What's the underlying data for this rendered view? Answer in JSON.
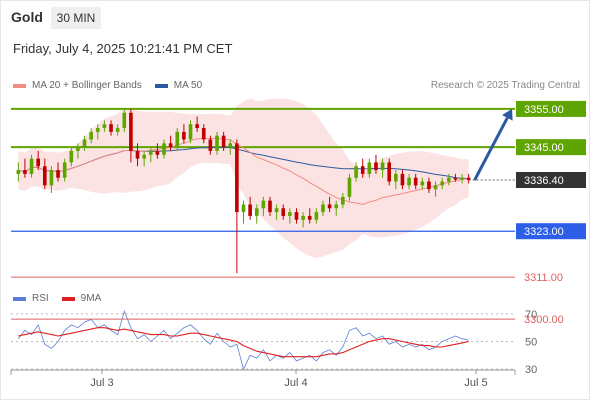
{
  "header": {
    "title": "Gold",
    "timeframe": "30 MIN",
    "datetime": "Friday, July 4, 2025 10:21:41 PM CET"
  },
  "legend": {
    "items": [
      {
        "label": "MA 20 + Bollinger Bands",
        "color": "#f28b82"
      },
      {
        "label": "MA 50",
        "color": "#2c5aa0"
      }
    ],
    "credit": "Research © 2025 Trading Central"
  },
  "rsi_legend": {
    "items": [
      {
        "label": "RSI",
        "color": "#5b7fd6"
      },
      {
        "label": "9MA",
        "color": "#e02020"
      }
    ]
  },
  "chart_data": [
    {
      "type": "candlestick",
      "ylim": [
        3305,
        3361
      ],
      "x_ticks": [
        "Jul 3",
        "Jul 4",
        "Jul 5"
      ],
      "last_price": {
        "label": "3336.40",
        "value": 3336.4
      },
      "levels": [
        {
          "label": "3355.00",
          "value": 3355,
          "color": "#5ea500",
          "kind": "resistance"
        },
        {
          "label": "3345.00",
          "value": 3345,
          "color": "#5ea500",
          "kind": "resistance"
        },
        {
          "label": "3323.00",
          "value": 3323,
          "color": "#2c5ee8",
          "kind": "pivot"
        },
        {
          "label": "3311.00",
          "value": 3311,
          "color": "#e06060",
          "kind": "support"
        },
        {
          "label": "3300.00",
          "value": 3300,
          "color": "#e06060",
          "kind": "support"
        }
      ],
      "arrow": {
        "from": 3336.4,
        "to": 3355,
        "color": "#2c5aa0"
      },
      "colors": {
        "up": "#5ea500",
        "down": "#c00000",
        "bands": "#fbd9d9",
        "ma20": "#f28b82",
        "ma50": "#2c5aa0"
      },
      "candles": [
        [
          3338,
          3341,
          3336,
          3339
        ],
        [
          3339,
          3342,
          3337,
          3338
        ],
        [
          3338,
          3343,
          3337,
          3342
        ],
        [
          3342,
          3344,
          3339,
          3340
        ],
        [
          3340,
          3342,
          3334,
          3335
        ],
        [
          3335,
          3340,
          3333,
          3339
        ],
        [
          3339,
          3341,
          3336,
          3337
        ],
        [
          3337,
          3342,
          3336,
          3341
        ],
        [
          3341,
          3345,
          3340,
          3344
        ],
        [
          3344,
          3346,
          3342,
          3345
        ],
        [
          3345,
          3348,
          3344,
          3347
        ],
        [
          3347,
          3350,
          3346,
          3349
        ],
        [
          3349,
          3351,
          3347,
          3350
        ],
        [
          3350,
          3352,
          3349,
          3351
        ],
        [
          3351,
          3352,
          3348,
          3349
        ],
        [
          3349,
          3351,
          3348,
          3350
        ],
        [
          3350,
          3355,
          3349,
          3354
        ],
        [
          3354,
          3355,
          3341,
          3344
        ],
        [
          3344,
          3346,
          3340,
          3342
        ],
        [
          3342,
          3344,
          3340,
          3343
        ],
        [
          3343,
          3345,
          3341,
          3344
        ],
        [
          3344,
          3346,
          3342,
          3343
        ],
        [
          3343,
          3347,
          3342,
          3346
        ],
        [
          3346,
          3348,
          3344,
          3345
        ],
        [
          3345,
          3350,
          3344,
          3349
        ],
        [
          3349,
          3351,
          3346,
          3347
        ],
        [
          3347,
          3352,
          3346,
          3351
        ],
        [
          3351,
          3353,
          3349,
          3350
        ],
        [
          3350,
          3351,
          3346,
          3347
        ],
        [
          3347,
          3348,
          3343,
          3344
        ],
        [
          3344,
          3349,
          3343,
          3348
        ],
        [
          3348,
          3349,
          3344,
          3345
        ],
        [
          3345,
          3347,
          3343,
          3346
        ],
        [
          3346,
          3347,
          3312,
          3328
        ],
        [
          3328,
          3331,
          3325,
          3330
        ],
        [
          3330,
          3332,
          3326,
          3327
        ],
        [
          3327,
          3330,
          3325,
          3329
        ],
        [
          3329,
          3332,
          3327,
          3331
        ],
        [
          3331,
          3332,
          3327,
          3328
        ],
        [
          3328,
          3330,
          3326,
          3329
        ],
        [
          3329,
          3330,
          3326,
          3327
        ],
        [
          3327,
          3329,
          3325,
          3328
        ],
        [
          3328,
          3329,
          3325,
          3326
        ],
        [
          3326,
          3328,
          3324,
          3327
        ],
        [
          3327,
          3329,
          3325,
          3326
        ],
        [
          3326,
          3329,
          3325,
          3328
        ],
        [
          3328,
          3331,
          3327,
          3330
        ],
        [
          3330,
          3332,
          3328,
          3329
        ],
        [
          3329,
          3331,
          3327,
          3330
        ],
        [
          3330,
          3333,
          3329,
          3332
        ],
        [
          3332,
          3338,
          3331,
          3337
        ],
        [
          3337,
          3341,
          3336,
          3340
        ],
        [
          3340,
          3342,
          3337,
          3338
        ],
        [
          3338,
          3342,
          3337,
          3341
        ],
        [
          3341,
          3343,
          3338,
          3339
        ],
        [
          3339,
          3342,
          3337,
          3341
        ],
        [
          3341,
          3342,
          3335,
          3336
        ],
        [
          3336,
          3339,
          3334,
          3338
        ],
        [
          3338,
          3339,
          3334,
          3335
        ],
        [
          3335,
          3338,
          3334,
          3337
        ],
        [
          3337,
          3338,
          3334,
          3335
        ],
        [
          3335,
          3337,
          3334,
          3336
        ],
        [
          3336,
          3337,
          3333,
          3334
        ],
        [
          3334,
          3336,
          3332,
          3335
        ],
        [
          3335,
          3337,
          3334,
          3336
        ],
        [
          3336,
          3338,
          3335,
          3337
        ],
        [
          3337,
          3338,
          3336,
          3336.5
        ],
        [
          3336.5,
          3338,
          3335.5,
          3337
        ],
        [
          3337,
          3338,
          3335.5,
          3336.4
        ]
      ]
    },
    {
      "type": "line",
      "title": "RSI",
      "ylim": [
        20,
        80
      ],
      "y_ticks": [
        "70",
        "50",
        "30"
      ],
      "y_tick_values": [
        70,
        50,
        30
      ],
      "series": [
        {
          "name": "RSI",
          "color": "#5b7fd6",
          "values": [
            52,
            58,
            55,
            62,
            48,
            45,
            50,
            58,
            62,
            60,
            64,
            66,
            60,
            62,
            58,
            55,
            72,
            60,
            52,
            55,
            50,
            54,
            58,
            52,
            56,
            60,
            62,
            58,
            52,
            48,
            56,
            50,
            46,
            48,
            30,
            40,
            38,
            44,
            36,
            40,
            38,
            42,
            36,
            38,
            40,
            36,
            42,
            44,
            40,
            46,
            58,
            60,
            54,
            56,
            52,
            54,
            48,
            50,
            46,
            48,
            46,
            48,
            44,
            46,
            50,
            52,
            54,
            52,
            51
          ]
        },
        {
          "name": "9MA",
          "color": "#e02020",
          "values": [
            54,
            55,
            56,
            57,
            56,
            55,
            54,
            55,
            56,
            57,
            58,
            59,
            60,
            60,
            59,
            58,
            59,
            58,
            57,
            56,
            55,
            55,
            55,
            54,
            54,
            55,
            56,
            56,
            55,
            54,
            53,
            52,
            51,
            50,
            47,
            45,
            43,
            42,
            41,
            40,
            39,
            39,
            39,
            39,
            39,
            39,
            40,
            41,
            41,
            42,
            44,
            46,
            48,
            50,
            51,
            52,
            52,
            51,
            50,
            49,
            48,
            47,
            47,
            46,
            46,
            47,
            48,
            49,
            50
          ]
        }
      ]
    }
  ]
}
